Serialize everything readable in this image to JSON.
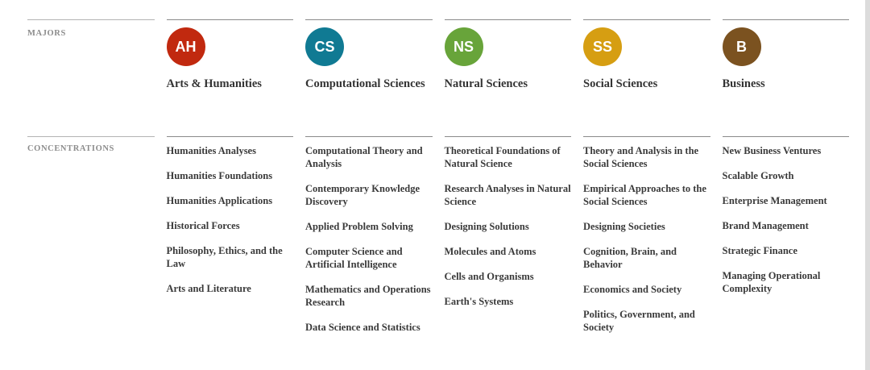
{
  "labels": {
    "majors": "MAJORS",
    "concentrations": "CONCENTRATIONS"
  },
  "majors": [
    {
      "abbr": "AH",
      "name": "Arts & Humanities",
      "color": "#c1290f",
      "concentrations": [
        "Humanities Analyses",
        "Humanities Foundations",
        "Humanities Applications",
        "Historical Forces",
        "Philosophy, Ethics, and the Law",
        "Arts and Literature"
      ]
    },
    {
      "abbr": "CS",
      "name": "Computational Sciences",
      "color": "#107a93",
      "concentrations": [
        "Computational Theory and Analysis",
        "Contemporary Knowledge Discovery",
        "Applied Problem Solving",
        "Computer Science and Artificial Intelligence",
        "Mathematics and Operations Research",
        "Data Science and Statistics"
      ]
    },
    {
      "abbr": "NS",
      "name": "Natural Sciences",
      "color": "#68a43a",
      "concentrations": [
        "Theoretical Foundations of Natural Science",
        "Research Analyses in Natural Science",
        "Designing Solutions",
        "Molecules and Atoms",
        "Cells and Organisms",
        "Earth's Systems"
      ]
    },
    {
      "abbr": "SS",
      "name": "Social Sciences",
      "color": "#d69e12",
      "concentrations": [
        "Theory and Analysis in the Social Sciences",
        "Empirical Approaches to the Social Sciences",
        "Designing Societies",
        "Cognition, Brain, and Behavior",
        "Economics and Society",
        "Politics, Government, and Society"
      ]
    },
    {
      "abbr": "B",
      "name": "Business",
      "color": "#7b5220",
      "concentrations": [
        "New Business Ventures",
        "Scalable Growth",
        "Enterprise Management",
        "Brand Management",
        "Strategic Finance",
        "Managing Operational Complexity"
      ]
    }
  ]
}
